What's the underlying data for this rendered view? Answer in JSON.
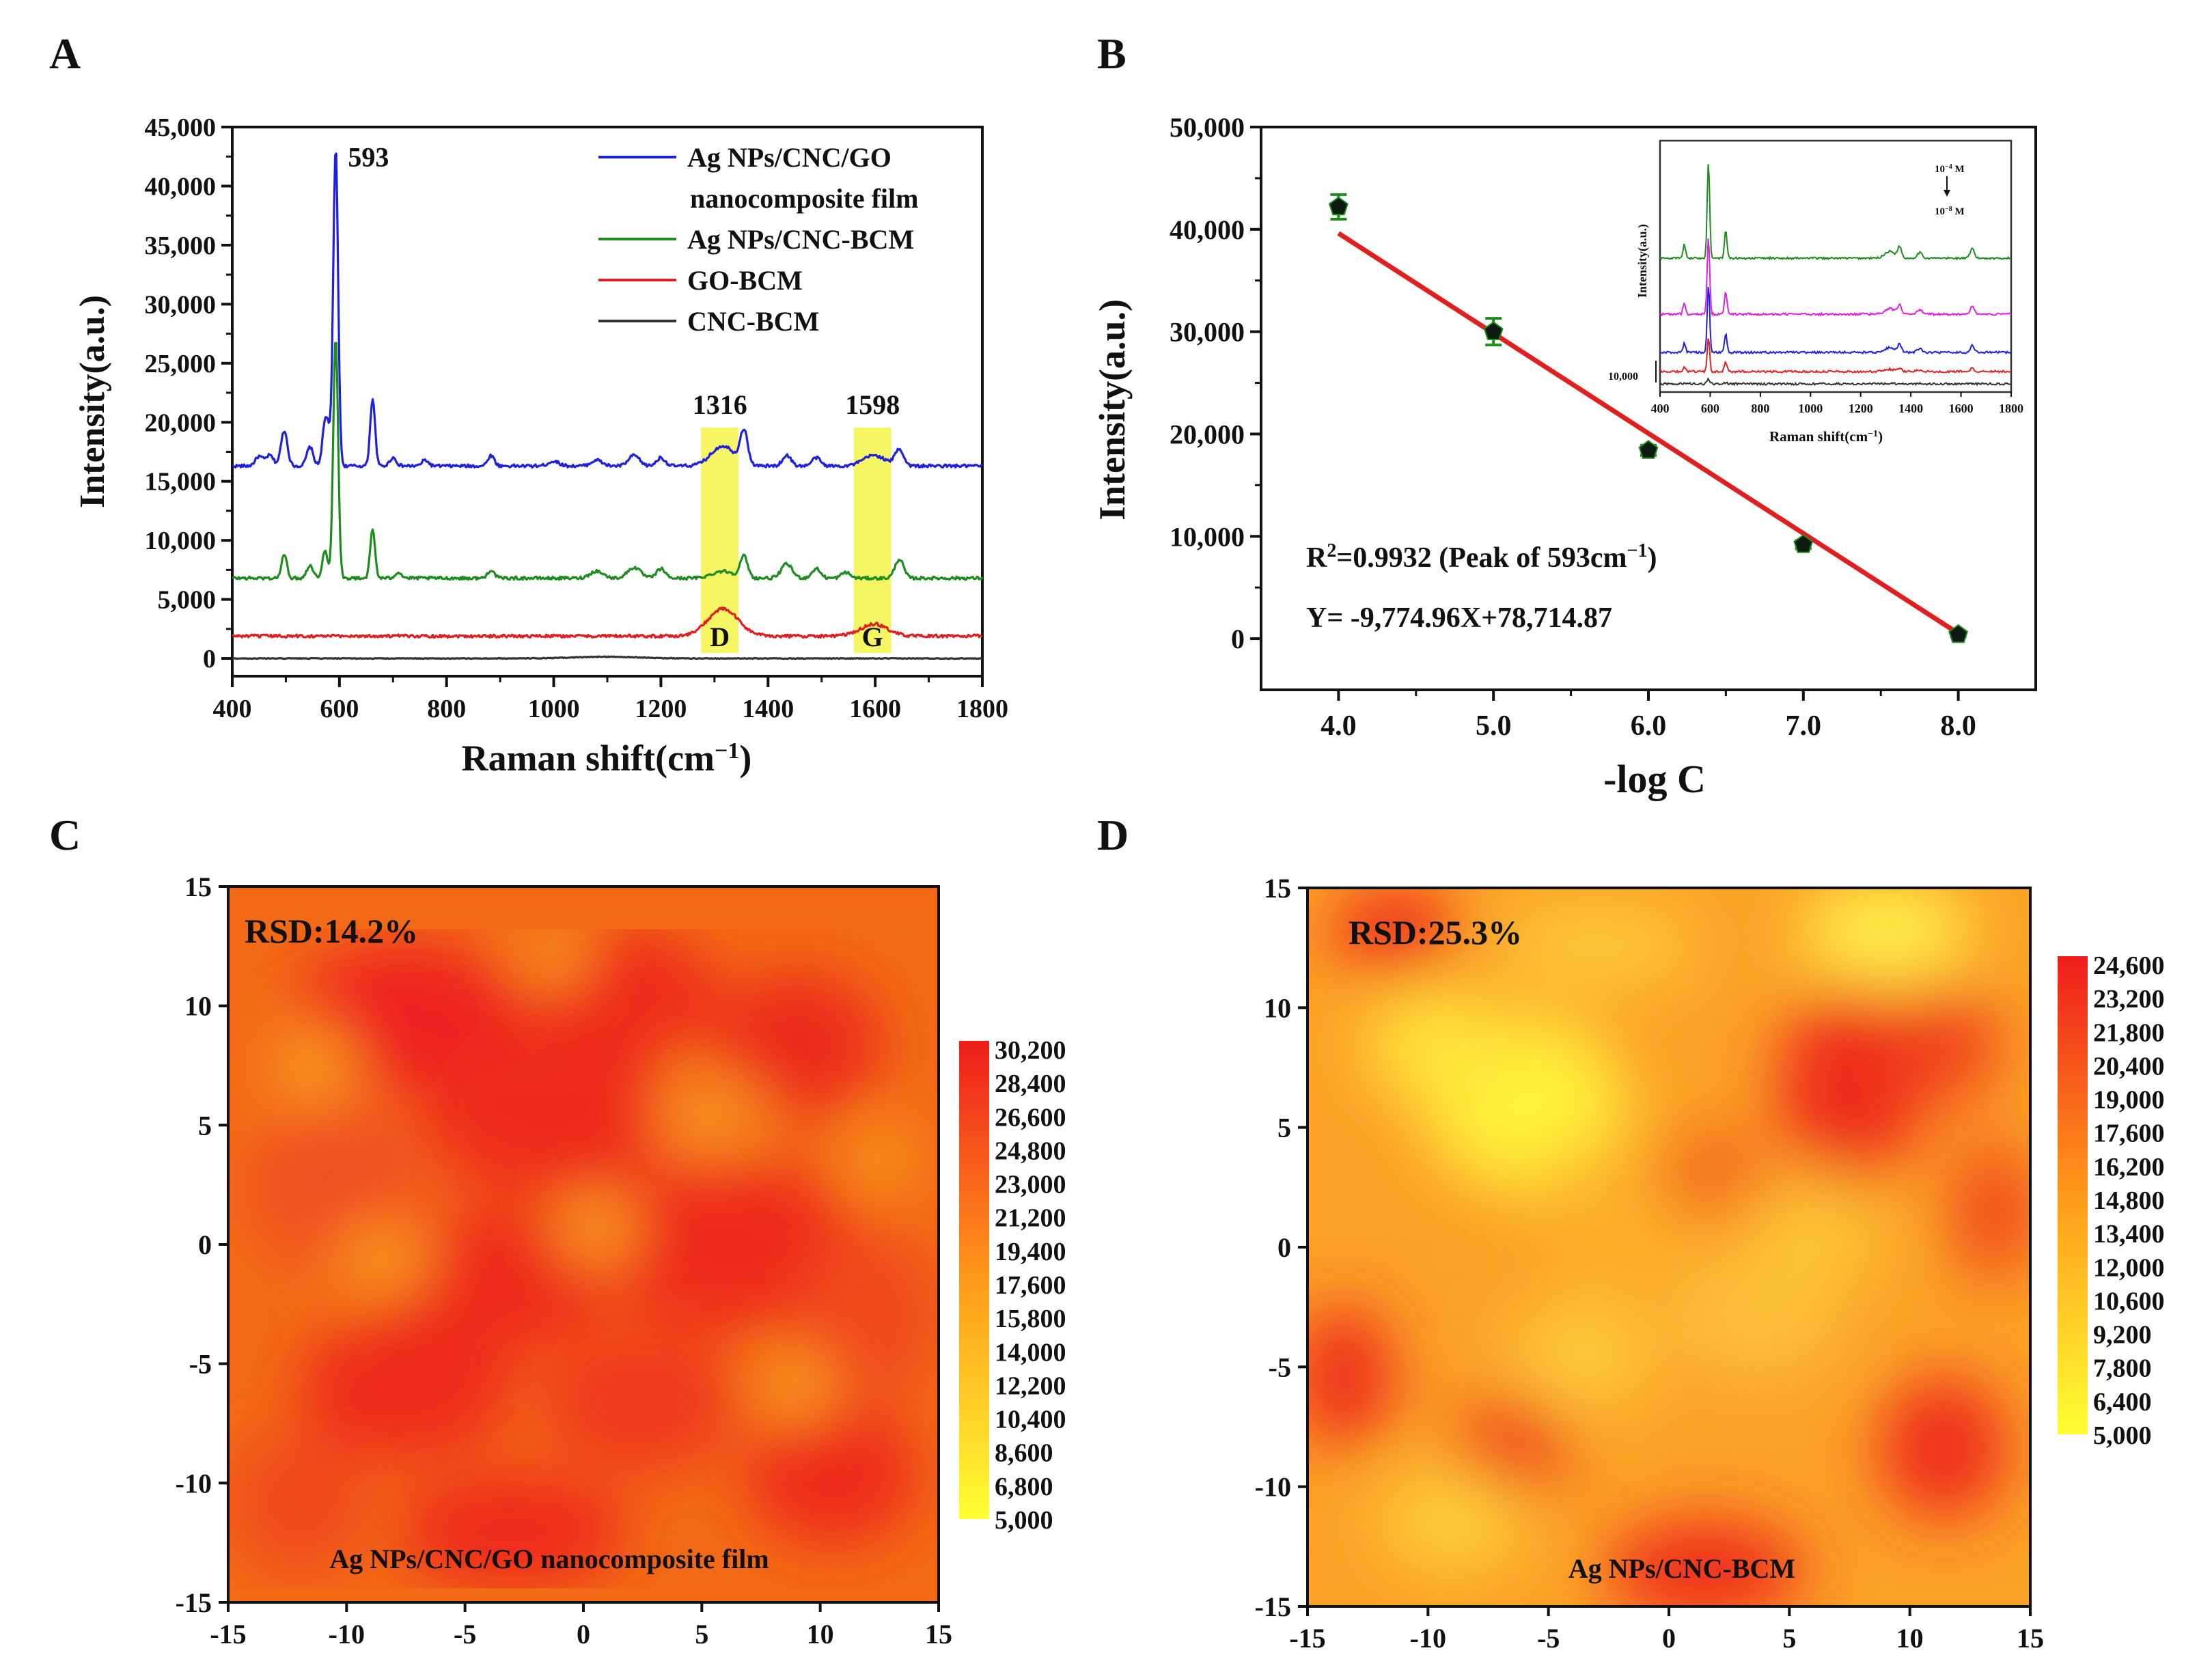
{
  "figure": {
    "panel_letters": [
      "A",
      "B",
      "C",
      "D"
    ]
  },
  "chart_data": [
    {
      "panel": "A",
      "type": "line",
      "xlabel": "Raman shift(cm",
      "xlabel_sup": "−1",
      "xlabel_end": ")",
      "ylabel": "Intensity(a.u.)",
      "xlim": [
        400,
        1800
      ],
      "ylim": [
        -1500,
        45000
      ],
      "xticks": [
        400,
        600,
        800,
        1000,
        1200,
        1400,
        1600,
        1800
      ],
      "xtick_labels": [
        "400",
        "600",
        "800",
        "1000",
        "1200",
        "1400",
        "1600",
        "1800"
      ],
      "yticks": [
        0,
        5000,
        10000,
        15000,
        20000,
        25000,
        30000,
        35000,
        40000,
        45000
      ],
      "ytick_labels": [
        "0",
        "5,000",
        "10,000",
        "15,000",
        "20,000",
        "25,000",
        "30,000",
        "35,000",
        "40,000",
        "45,000"
      ],
      "legend": [
        {
          "label": "Ag NPs/CNC/GO",
          "label2": "nanocomposite film",
          "color": "#1f1fe0"
        },
        {
          "label": "Ag NPs/CNC-BCM",
          "color": "#1e8c1e"
        },
        {
          "label": "GO-BCM",
          "color": "#e02020"
        },
        {
          "label": "CNC-BCM",
          "color": "#333333"
        }
      ],
      "highlight_bands": [
        {
          "x0": 1275,
          "x1": 1345,
          "label": "D",
          "peak_label": "1316",
          "color": "#f5f54a"
        },
        {
          "x0": 1560,
          "x1": 1630,
          "label": "G",
          "peak_label": "1598",
          "color": "#f5f54a"
        }
      ],
      "annotations": [
        {
          "text": "593",
          "x": 593,
          "y": 43300
        }
      ],
      "series": [
        {
          "name": "Ag NPs/CNC/GO nanocomposite film",
          "color": "#1f1fe0",
          "baseline": 16300,
          "peaks": [
            [
              450,
              800,
              7
            ],
            [
              470,
              900,
              7
            ],
            [
              497,
              3000,
              6
            ],
            [
              545,
              1600,
              6
            ],
            [
              573,
              3500,
              5
            ],
            [
              580,
              2000,
              4
            ],
            [
              593,
              27000,
              4.5
            ],
            [
              662,
              5700,
              4.5
            ],
            [
              700,
              700,
              6
            ],
            [
              760,
              500,
              6
            ],
            [
              883,
              900,
              6
            ],
            [
              1000,
              400,
              10
            ],
            [
              1080,
              500,
              10
            ],
            [
              1150,
              900,
              10
            ],
            [
              1200,
              700,
              8
            ],
            [
              1316,
              1700,
              22
            ],
            [
              1355,
              2800,
              7
            ],
            [
              1435,
              900,
              8
            ],
            [
              1490,
              700,
              8
            ],
            [
              1598,
              900,
              20
            ],
            [
              1645,
              1400,
              8
            ]
          ]
        },
        {
          "name": "Ag NPs/CNC-BCM",
          "color": "#1e8c1e",
          "baseline": 6800,
          "peaks": [
            [
              497,
              2000,
              5
            ],
            [
              545,
              1100,
              6
            ],
            [
              573,
              2300,
              5
            ],
            [
              593,
              20500,
              4.5
            ],
            [
              662,
              4100,
              4.5
            ],
            [
              710,
              500,
              6
            ],
            [
              883,
              700,
              6
            ],
            [
              1080,
              600,
              12
            ],
            [
              1150,
              900,
              12
            ],
            [
              1200,
              800,
              8
            ],
            [
              1316,
              600,
              20
            ],
            [
              1355,
              1800,
              7
            ],
            [
              1435,
              1200,
              10
            ],
            [
              1490,
              800,
              8
            ],
            [
              1545,
              500,
              8
            ],
            [
              1645,
              1600,
              8
            ]
          ]
        },
        {
          "name": "GO-BCM",
          "color": "#e02020",
          "baseline": 1900,
          "peaks": [
            [
              1316,
              2300,
              28
            ],
            [
              1598,
              1000,
              25
            ]
          ]
        },
        {
          "name": "CNC-BCM",
          "color": "#333333",
          "baseline": 0,
          "peaks": [
            [
              1100,
              150,
              60
            ]
          ]
        }
      ]
    },
    {
      "panel": "B",
      "type": "scatter",
      "xlabel": "-log C",
      "ylabel": "Intensity(a.u.)",
      "xlim": [
        3.5,
        8.5
      ],
      "ylim": [
        -5000,
        50000
      ],
      "xticks": [
        4,
        5,
        6,
        7,
        8
      ],
      "xtick_labels": [
        "4.0",
        "5.0",
        "6.0",
        "7.0",
        "8.0"
      ],
      "yticks": [
        0,
        10000,
        20000,
        30000,
        40000,
        50000
      ],
      "ytick_labels": [
        "0",
        "10,000",
        "20,000",
        "30,000",
        "40,000",
        "50,000"
      ],
      "x": [
        4,
        5,
        6,
        7,
        8
      ],
      "y": [
        42200,
        30000,
        18400,
        9200,
        400
      ],
      "y_err": [
        1200,
        1300,
        500,
        400,
        200
      ],
      "fit": {
        "slope": -9774.96,
        "intercept": 78714.87,
        "color": "#e02020"
      },
      "r2_text_a": "R",
      "r2_text_sup": "2",
      "r2_text_b": "=0.9932 (Peak of 593cm",
      "r2_text_sup2": "−1",
      "r2_text_c": ")",
      "equation_text": "Y= -9,774.96X+78,714.87",
      "inset": {
        "xlabel": "Raman shift(cm",
        "xlabel_sup": "−1",
        "xlabel_end": ")",
        "ylabel": "Intensity(a.u.)",
        "xlim": [
          400,
          1800
        ],
        "xticks": [
          400,
          600,
          800,
          1000,
          1200,
          1400,
          1600,
          1800
        ],
        "xtick_labels": [
          "400",
          "600",
          "800",
          "1000",
          "1200",
          "1400",
          "1600",
          "1800"
        ],
        "scale_label": "10,000",
        "conc_top_a": "10",
        "conc_top_sup": "−4",
        "conc_top_b": " M",
        "conc_bottom_a": "10",
        "conc_bottom_sup": "−8",
        "conc_bottom_b": " M",
        "series_colors": [
          "#1e8c1e",
          "#e020e0",
          "#1f1fe0",
          "#e02020",
          "#333333"
        ]
      }
    },
    {
      "panel": "C",
      "type": "heatmap",
      "title_text": "RSD:14.2%",
      "caption": "Ag NPs/CNC/GO nanocomposite film",
      "xlim": [
        -15,
        15
      ],
      "ylim": [
        -15,
        15
      ],
      "ticks": [
        -15,
        -10,
        -5,
        0,
        5,
        10,
        15
      ],
      "colorbar_min": 5000,
      "colorbar_max": 30200,
      "colorbar_labels": [
        "30,200",
        "28,400",
        "26,600",
        "24,800",
        "23,000",
        "21,200",
        "19,400",
        "17,600",
        "15,800",
        "14,000",
        "12,200",
        "10,400",
        "8,600",
        "6,800",
        "5,000"
      ],
      "colormap": [
        "#ffff33",
        "#ff9a1a",
        "#ee1c1c"
      ]
    },
    {
      "panel": "D",
      "type": "heatmap",
      "title_text": "RSD:25.3%",
      "caption": "Ag NPs/CNC-BCM",
      "xlim": [
        -15,
        15
      ],
      "ylim": [
        -15,
        15
      ],
      "ticks": [
        -15,
        -10,
        -5,
        0,
        5,
        10,
        15
      ],
      "colorbar_min": 5000,
      "colorbar_max": 24600,
      "colorbar_labels": [
        "24,600",
        "23,200",
        "21,800",
        "20,400",
        "19,000",
        "17,600",
        "16,200",
        "14,800",
        "13,400",
        "12,000",
        "10,600",
        "9,200",
        "7,800",
        "6,400",
        "5,000"
      ],
      "colormap": [
        "#ffff33",
        "#ff9a1a",
        "#ee1c1c"
      ]
    }
  ]
}
